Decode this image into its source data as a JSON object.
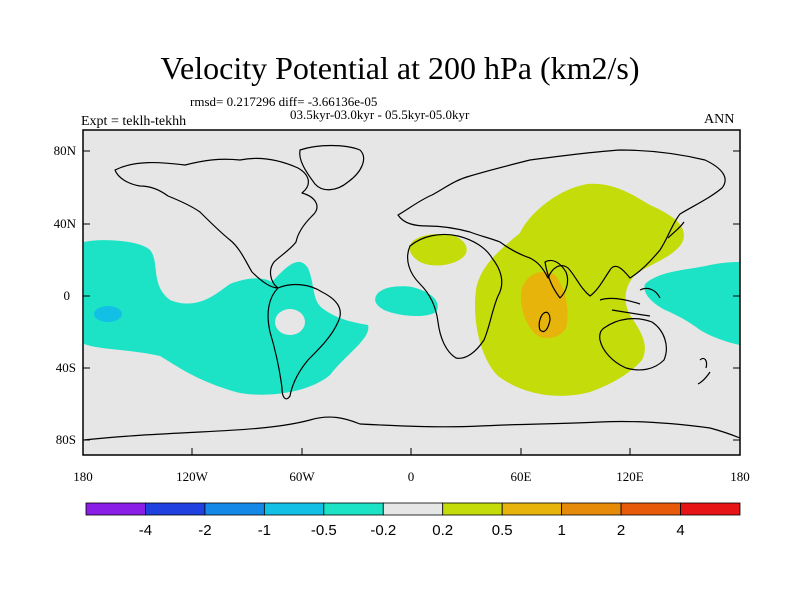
{
  "title": "Velocity Potential at 200 hPa (km2/s)",
  "stats_line": "rmsd= 0.217296 diff= -3.66136e-05",
  "period_line": "03.5kyr-03.0kyr - 05.5kyr-05.0kyr",
  "experiment_label": "Expt = teklh-tekhh",
  "season_label": "ANN",
  "axes": {
    "lat_ticks": [
      "80N",
      "40N",
      "0",
      "40S",
      "80S"
    ],
    "lon_ticks": [
      "180",
      "120W",
      "60W",
      "0",
      "60E",
      "120E",
      "180"
    ]
  },
  "colorbar": {
    "labels": [
      "-4",
      "-2",
      "-1",
      "-0.5",
      "-0.2",
      "0.2",
      "0.5",
      "1",
      "2",
      "4"
    ],
    "colors": [
      "#8a1ee6",
      "#2040e0",
      "#1488e6",
      "#12c0e6",
      "#1de3c6",
      "#e6e6e6",
      "#c4dc0a",
      "#e6b40a",
      "#e68a0a",
      "#e65a0a",
      "#e61414"
    ]
  },
  "colors": {
    "background": "#e6e6e6",
    "negative_contour": "#1de3c6",
    "positive_contour": "#c4dc0a",
    "strong_positive": "#e6b40a",
    "strong_negative": "#12c0e6"
  }
}
